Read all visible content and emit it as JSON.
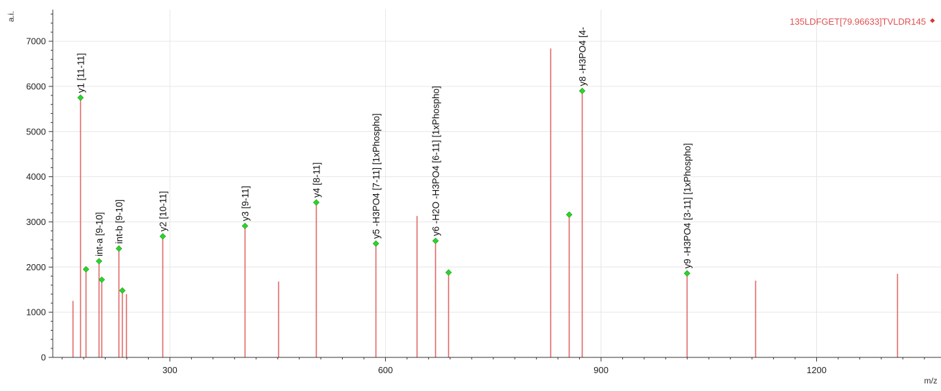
{
  "chart_data": {
    "type": "bar",
    "title": "",
    "xlabel": "m/z",
    "ylabel": "a.i.",
    "xlim": [
      137,
      1375
    ],
    "ylim": [
      0,
      7700
    ],
    "xticks": [
      300,
      600,
      900,
      1200
    ],
    "yticks": [
      0,
      1000,
      2000,
      3000,
      4000,
      5000,
      6000,
      7000
    ],
    "grid": true,
    "legend": {
      "label": "135LDFGET[79.96633]TVLDR145",
      "position": "top-right"
    },
    "series": [
      {
        "name": "135LDFGET[79.96633]TVLDR145",
        "peaks": [
          {
            "x": 165,
            "y": 1250
          },
          {
            "x": 175,
            "y": 5750,
            "marked": true,
            "label": "y1 [11-11]"
          },
          {
            "x": 183,
            "y": 1950,
            "marked": true
          },
          {
            "x": 201,
            "y": 2130,
            "marked": true,
            "label": "int-a [9-10]"
          },
          {
            "x": 205,
            "y": 1720,
            "marked": true
          },
          {
            "x": 229,
            "y": 2410,
            "marked": true,
            "label": "int-b [9-10]"
          },
          {
            "x": 233,
            "y": 1480,
            "marked": true
          },
          {
            "x": 239,
            "y": 1400
          },
          {
            "x": 290,
            "y": 2680,
            "marked": true,
            "label": "y2 [10-11]"
          },
          {
            "x": 404,
            "y": 2910,
            "marked": true,
            "label": "y3 [9-11]"
          },
          {
            "x": 451,
            "y": 1680
          },
          {
            "x": 503,
            "y": 3430,
            "marked": true,
            "label": "y4 [8-11]"
          },
          {
            "x": 586,
            "y": 2520,
            "marked": true,
            "label": "y5 -H3PO4 [7-11] [1xPhospho]"
          },
          {
            "x": 643,
            "y": 3130
          },
          {
            "x": 669,
            "y": 2580,
            "marked": true,
            "label": "y6 -H2O -H3PO4 [6-11] [1xPhospho]"
          },
          {
            "x": 687,
            "y": 1880,
            "marked": true
          },
          {
            "x": 829,
            "y": 6840
          },
          {
            "x": 855,
            "y": 3160,
            "marked": true
          },
          {
            "x": 873,
            "y": 5900,
            "marked": true,
            "label": "y8 -H3PO4 [4-"
          },
          {
            "x": 1019,
            "y": 1860,
            "marked": true,
            "label": "y9 -H3PO4 [3-11] [1xPhospho]"
          },
          {
            "x": 1115,
            "y": 1700
          },
          {
            "x": 1312,
            "y": 1850
          }
        ]
      }
    ]
  },
  "colors": {
    "peak": "#e06666",
    "marker": "#2bd42b",
    "legend_text": "#e05050",
    "legend_marker": "#e03030",
    "grid": "#e6e6e6",
    "axis": "#333333"
  }
}
